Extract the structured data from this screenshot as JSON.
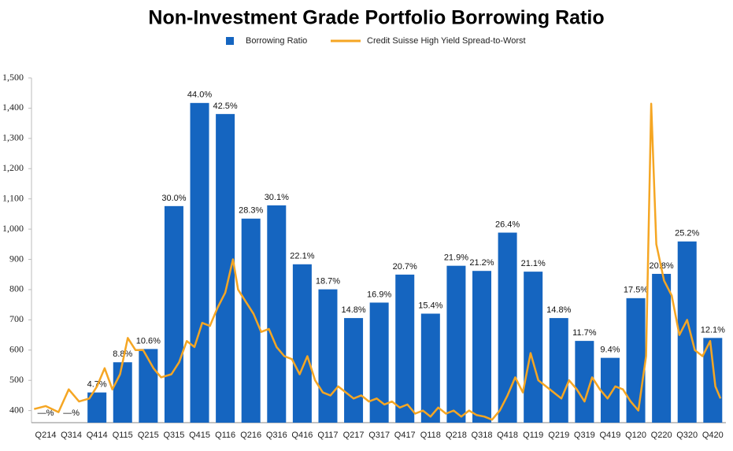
{
  "chart_data": {
    "type": "bar",
    "title": "Non-Investment Grade Portfolio Borrowing Ratio",
    "categories": [
      "Q214",
      "Q314",
      "Q414",
      "Q115",
      "Q215",
      "Q315",
      "Q415",
      "Q116",
      "Q216",
      "Q316",
      "Q416",
      "Q117",
      "Q217",
      "Q317",
      "Q417",
      "Q118",
      "Q218",
      "Q318",
      "Q418",
      "Q119",
      "Q219",
      "Q319",
      "Q419",
      "Q120",
      "Q220",
      "Q320",
      "Q420"
    ],
    "ylim": [
      360,
      1500
    ],
    "yticks": [
      400,
      500,
      600,
      700,
      800,
      900,
      {
        "value": 1000,
        "label": "1,000"
      },
      {
        "value": 1100,
        "label": "1,100"
      },
      {
        "value": 1200,
        "label": "1,200"
      },
      {
        "value": 1300,
        "label": "1,300"
      },
      {
        "value": 1400,
        "label": "1,400"
      },
      {
        "value": 1500,
        "label": "1,500"
      }
    ],
    "y2lim": [
      0.6,
      47.4
    ],
    "grid": false,
    "series": [
      {
        "name": "Borrowing Ratio",
        "color": "#1565c0",
        "axis": "y2",
        "values": [
          null,
          null,
          4.7,
          8.8,
          10.6,
          30.0,
          44.0,
          42.5,
          28.3,
          30.1,
          22.1,
          18.7,
          14.8,
          16.9,
          20.7,
          15.4,
          21.9,
          21.2,
          26.4,
          21.1,
          14.8,
          11.7,
          9.4,
          17.5,
          20.8,
          25.2,
          12.1
        ],
        "value_labels": [
          "—%",
          "—%",
          "4.7%",
          "8.8%",
          "10.6%",
          "30.0%",
          "44.0%",
          "42.5%",
          "28.3%",
          "30.1%",
          "22.1%",
          "18.7%",
          "14.8%",
          "16.9%",
          "20.7%",
          "15.4%",
          "21.9%",
          "21.2%",
          "26.4%",
          "21.1%",
          "14.8%",
          "11.7%",
          "9.4%",
          "17.5%",
          "20.8%",
          "25.2%",
          "12.1%"
        ]
      },
      {
        "name": "Credit Suisse High Yield Spread-to-Worst",
        "color": "#f5a623",
        "type": "line",
        "x": [
          -0.45,
          0,
          0.5,
          0.9,
          1.3,
          1.7,
          2.0,
          2.3,
          2.6,
          2.9,
          3.2,
          3.5,
          3.8,
          4.2,
          4.5,
          4.9,
          5.2,
          5.5,
          5.8,
          6.1,
          6.4,
          6.7,
          7.0,
          7.3,
          7.5,
          7.8,
          8.1,
          8.4,
          8.7,
          9.0,
          9.3,
          9.6,
          9.9,
          10.2,
          10.5,
          10.8,
          11.1,
          11.4,
          11.7,
          12.0,
          12.3,
          12.6,
          12.9,
          13.2,
          13.5,
          13.8,
          14.1,
          14.4,
          14.7,
          15.0,
          15.3,
          15.6,
          15.9,
          16.2,
          16.5,
          16.8,
          17.1,
          17.4,
          17.7,
          18.0,
          18.3,
          18.6,
          18.9,
          19.2,
          19.5,
          19.8,
          20.1,
          20.4,
          20.7,
          21.0,
          21.3,
          21.6,
          21.9,
          22.2,
          22.5,
          22.8,
          23.1,
          23.4,
          23.6,
          23.8,
          24.1,
          24.4,
          24.7,
          25.0,
          25.3,
          25.6,
          25.9,
          26.1,
          26.3
        ],
        "values": [
          405,
          415,
          395,
          470,
          430,
          440,
          480,
          540,
          470,
          520,
          640,
          600,
          600,
          540,
          510,
          520,
          560,
          630,
          610,
          690,
          680,
          740,
          790,
          900,
          800,
          760,
          720,
          660,
          670,
          610,
          580,
          570,
          520,
          580,
          500,
          460,
          450,
          480,
          460,
          440,
          450,
          430,
          440,
          420,
          430,
          410,
          420,
          390,
          400,
          380,
          410,
          390,
          400,
          380,
          400,
          385,
          380,
          370,
          400,
          450,
          510,
          460,
          590,
          500,
          480,
          460,
          440,
          500,
          470,
          430,
          510,
          470,
          440,
          480,
          470,
          430,
          400,
          580,
          1415,
          950,
          830,
          780,
          650,
          700,
          600,
          580,
          630,
          480,
          440
        ]
      }
    ]
  }
}
